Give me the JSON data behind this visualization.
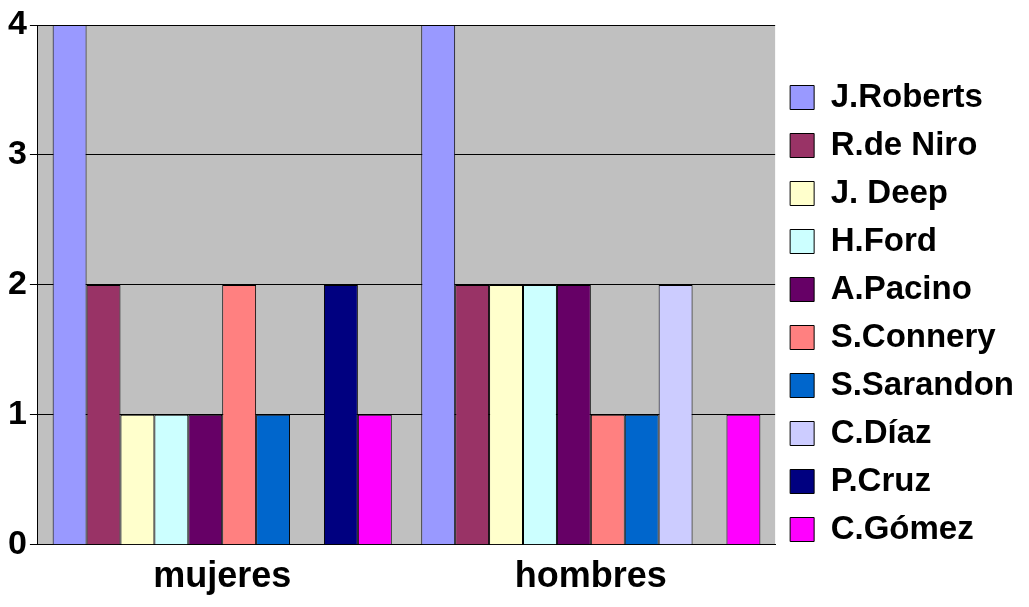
{
  "chart_data": {
    "type": "bar",
    "categories": [
      "mujeres",
      "hombres"
    ],
    "series": [
      {
        "name": "J.Roberts",
        "color": "#9999ff",
        "values": [
          4,
          4
        ]
      },
      {
        "name": "R.de Niro",
        "color": "#993366",
        "values": [
          2,
          2
        ]
      },
      {
        "name": "J. Deep",
        "color": "#ffffcc",
        "values": [
          1,
          2
        ]
      },
      {
        "name": "H.Ford",
        "color": "#ccffff",
        "values": [
          1,
          2
        ]
      },
      {
        "name": "A.Pacino",
        "color": "#660066",
        "values": [
          1,
          2
        ]
      },
      {
        "name": "S.Connery",
        "color": "#ff8080",
        "values": [
          2,
          1
        ]
      },
      {
        "name": "S.Sarandon",
        "color": "#0066cc",
        "values": [
          1,
          1
        ]
      },
      {
        "name": "C.Díaz",
        "color": "#ccccff",
        "values": [
          0,
          2
        ]
      },
      {
        "name": "P.Cruz",
        "color": "#000080",
        "values": [
          2,
          0
        ]
      },
      {
        "name": "C.Gómez",
        "color": "#ff00ff",
        "values": [
          1,
          1
        ]
      }
    ],
    "ylim": [
      0,
      4
    ],
    "yticks": [
      0,
      1,
      2,
      3,
      4
    ],
    "grid": "y",
    "legend": "right"
  }
}
